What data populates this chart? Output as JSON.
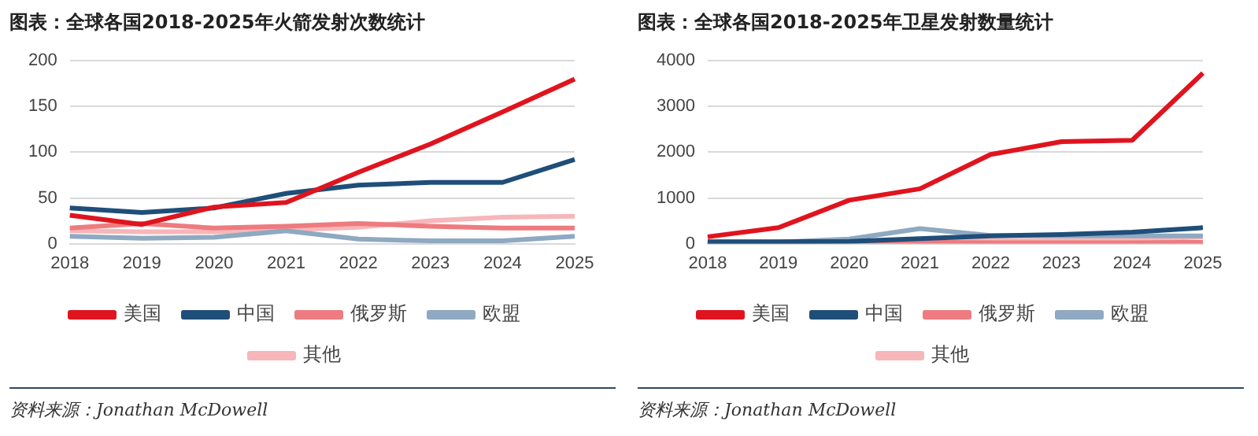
{
  "chart_data": [
    {
      "type": "line",
      "title": "图表：全球各国2018-2025年火箭发射次数统计",
      "categories": [
        "2018",
        "2019",
        "2020",
        "2021",
        "2022",
        "2023",
        "2024",
        "2025"
      ],
      "series": [
        {
          "name": "美国",
          "color": "#e0141e",
          "values": [
            31,
            21,
            40,
            45,
            78,
            109,
            144,
            180
          ]
        },
        {
          "name": "中国",
          "color": "#1f4e79",
          "values": [
            39,
            34,
            39,
            55,
            64,
            67,
            67,
            92
          ]
        },
        {
          "name": "俄罗斯",
          "color": "#ee7b7f",
          "values": [
            17,
            22,
            17,
            19,
            22,
            19,
            17,
            17
          ]
        },
        {
          "name": "欧盟",
          "color": "#8ea9c1",
          "values": [
            8,
            6,
            7,
            14,
            5,
            3,
            3,
            8
          ]
        },
        {
          "name": "其他",
          "color": "#f7b6b9",
          "values": [
            14,
            13,
            13,
            15,
            18,
            25,
            29,
            30
          ]
        }
      ],
      "ylim": [
        0,
        200
      ],
      "yticks": [
        0,
        50,
        100,
        150,
        200
      ],
      "grid": "y",
      "legend": "bottom",
      "marker": "none",
      "line_style": "solid",
      "annotations": [
        "资料来源：Jonathan McDowell"
      ]
    },
    {
      "type": "line",
      "title": "图表：全球各国2018-2025年卫星发射数量统计",
      "categories": [
        "2018",
        "2019",
        "2020",
        "2021",
        "2022",
        "2023",
        "2024",
        "2025"
      ],
      "series": [
        {
          "name": "美国",
          "color": "#e0141e",
          "values": [
            150,
            350,
            950,
            1200,
            1950,
            2230,
            2260,
            3730
          ]
        },
        {
          "name": "中国",
          "color": "#1f4e79",
          "values": [
            40,
            40,
            50,
            110,
            170,
            200,
            250,
            350
          ]
        },
        {
          "name": "俄罗斯",
          "color": "#ee7b7f",
          "values": [
            30,
            null,
            30,
            30,
            20,
            20,
            20,
            30
          ]
        },
        {
          "name": "欧盟",
          "color": "#8ea9c1",
          "values": [
            10,
            30,
            100,
            330,
            180,
            170,
            170,
            170
          ]
        },
        {
          "name": "其他",
          "color": "#f7b6b9",
          "values": [
            50,
            40,
            50,
            80,
            60,
            60,
            80,
            150
          ]
        }
      ],
      "ylim": [
        0,
        4000
      ],
      "yticks": [
        0,
        1000,
        2000,
        3000,
        4000
      ],
      "grid": "y",
      "legend": "bottom",
      "marker": "none",
      "line_style": "solid",
      "annotations": [
        "资料来源：Jonathan McDowell"
      ]
    }
  ]
}
